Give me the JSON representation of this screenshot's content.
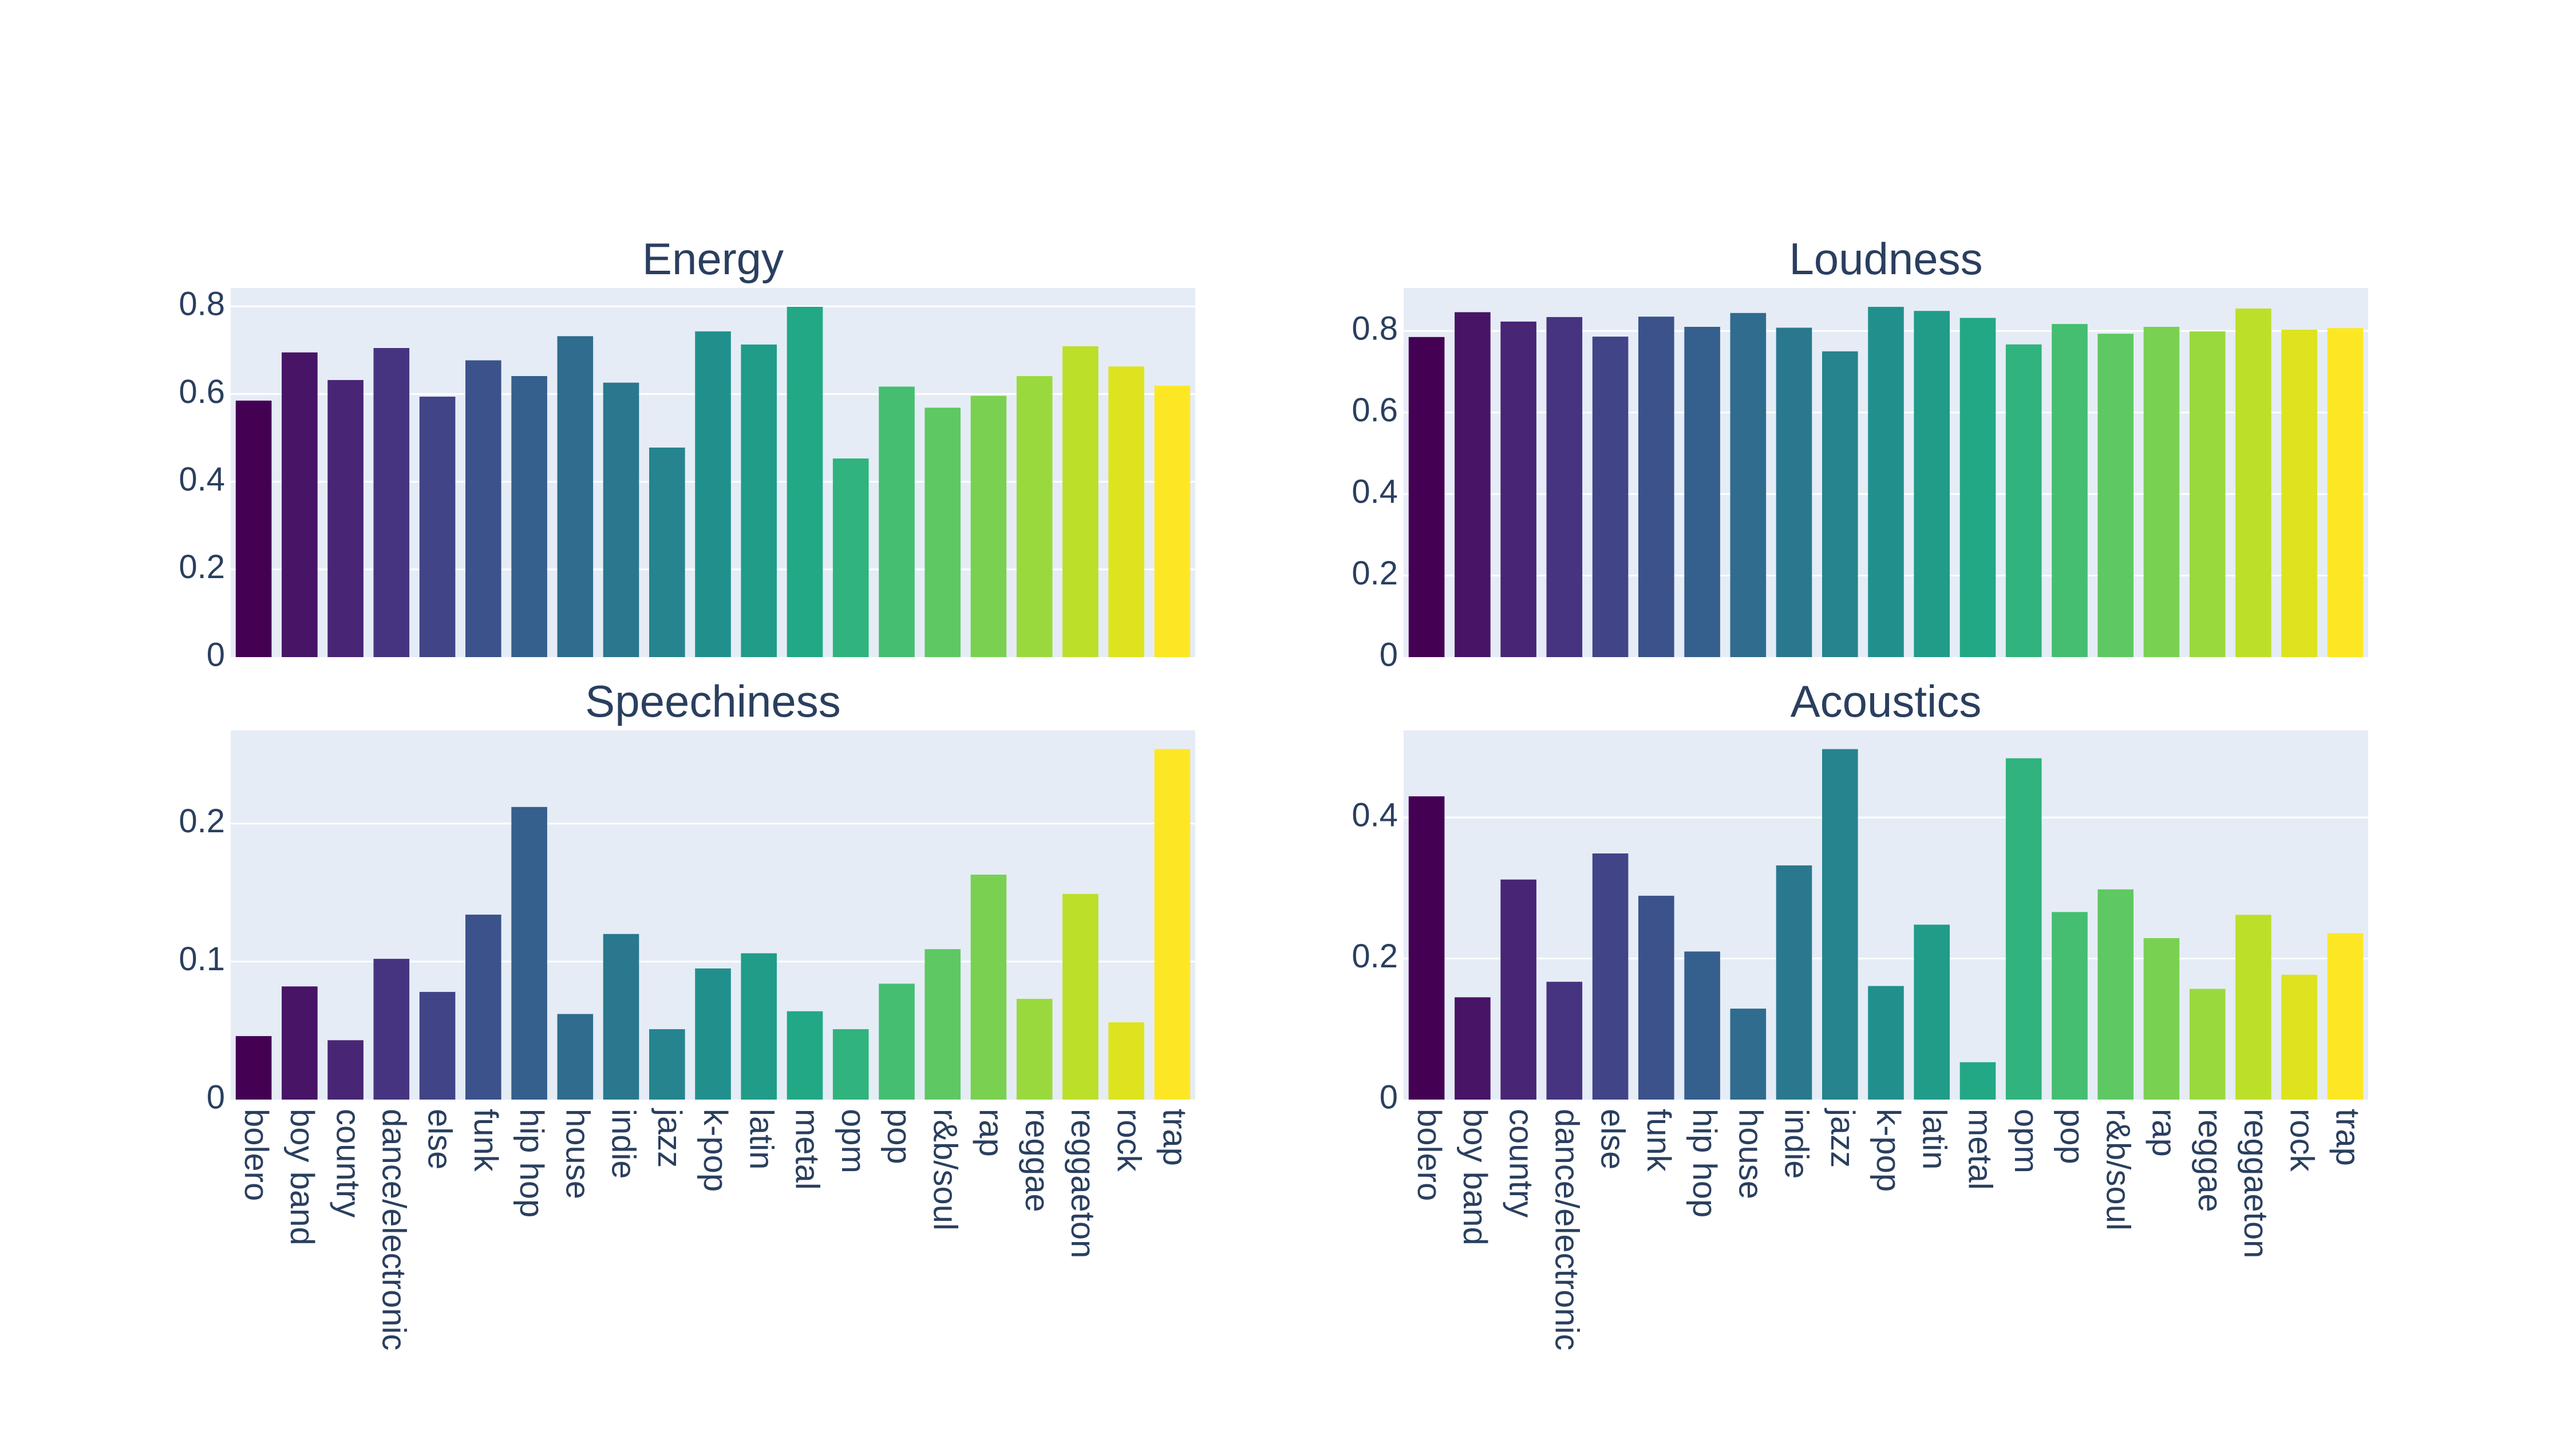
{
  "chart_data": [
    {
      "type": "bar",
      "title": "Energy",
      "categories": [
        "bolero",
        "boy band",
        "country",
        "dance/electronic",
        "else",
        "funk",
        "hip hop",
        "house",
        "indie",
        "jazz",
        "k-pop",
        "latin",
        "metal",
        "opm",
        "pop",
        "r&b/soul",
        "rap",
        "reggae",
        "reggaeton",
        "rock",
        "trap"
      ],
      "values": [
        0.585,
        0.695,
        0.632,
        0.705,
        0.594,
        0.677,
        0.641,
        0.732,
        0.626,
        0.478,
        0.743,
        0.713,
        0.799,
        0.453,
        0.617,
        0.569,
        0.596,
        0.641,
        0.709,
        0.663,
        0.619
      ],
      "ylim": [
        0,
        0.8421
      ],
      "yticks": [
        0,
        0.2,
        0.4,
        0.6,
        0.8
      ],
      "ytick_labels": [
        "0",
        "0.2",
        "0.4",
        "0.6",
        "0.8"
      ],
      "show_x_labels": false
    },
    {
      "type": "bar",
      "title": "Loudness",
      "categories": [
        "bolero",
        "boy band",
        "country",
        "dance/electronic",
        "else",
        "funk",
        "hip hop",
        "house",
        "indie",
        "jazz",
        "k-pop",
        "latin",
        "metal",
        "opm",
        "pop",
        "r&b/soul",
        "rap",
        "reggae",
        "reggaeton",
        "rock",
        "trap"
      ],
      "values": [
        0.785,
        0.846,
        0.823,
        0.834,
        0.786,
        0.835,
        0.81,
        0.844,
        0.808,
        0.75,
        0.859,
        0.849,
        0.832,
        0.767,
        0.817,
        0.793,
        0.81,
        0.799,
        0.855,
        0.803,
        0.807
      ],
      "ylim": [
        0,
        0.9055
      ],
      "yticks": [
        0,
        0.2,
        0.4,
        0.6,
        0.8
      ],
      "ytick_labels": [
        "0",
        "0.2",
        "0.4",
        "0.6",
        "0.8"
      ],
      "show_x_labels": false
    },
    {
      "type": "bar",
      "title": "Speechiness",
      "categories": [
        "bolero",
        "boy band",
        "country",
        "dance/electronic",
        "else",
        "funk",
        "hip hop",
        "house",
        "indie",
        "jazz",
        "k-pop",
        "latin",
        "metal",
        "opm",
        "pop",
        "r&b/soul",
        "rap",
        "reggae",
        "reggaeton",
        "rock",
        "trap"
      ],
      "values": [
        0.046,
        0.082,
        0.043,
        0.102,
        0.078,
        0.134,
        0.212,
        0.062,
        0.12,
        0.051,
        0.095,
        0.106,
        0.064,
        0.051,
        0.084,
        0.109,
        0.163,
        0.073,
        0.149,
        0.056,
        0.254
      ],
      "ylim": [
        0,
        0.2675
      ],
      "yticks": [
        0,
        0.1,
        0.2
      ],
      "ytick_labels": [
        "0",
        "0.1",
        "0.2"
      ],
      "show_x_labels": true
    },
    {
      "type": "bar",
      "title": "Acoustics",
      "categories": [
        "bolero",
        "boy band",
        "country",
        "dance/electronic",
        "else",
        "funk",
        "hip hop",
        "house",
        "indie",
        "jazz",
        "k-pop",
        "latin",
        "metal",
        "opm",
        "pop",
        "r&b/soul",
        "rap",
        "reggae",
        "reggaeton",
        "rock",
        "trap"
      ],
      "values": [
        0.43,
        0.145,
        0.312,
        0.167,
        0.349,
        0.289,
        0.21,
        0.129,
        0.332,
        0.497,
        0.161,
        0.248,
        0.053,
        0.484,
        0.266,
        0.298,
        0.229,
        0.157,
        0.262,
        0.177,
        0.236
      ],
      "ylim": [
        0,
        0.5235
      ],
      "yticks": [
        0,
        0.2,
        0.4
      ],
      "ytick_labels": [
        "0",
        "0.2",
        "0.4"
      ],
      "show_x_labels": true
    }
  ],
  "colors": {
    "plot_bg": "#e5ecf6",
    "grid": "#ffffff",
    "text": "#2a3f5f",
    "bars": [
      "#440154",
      "#481a6c",
      "#472f7d",
      "#414487",
      "#39568c",
      "#31688e",
      "#2a788e",
      "#23888e",
      "#1f988b",
      "#22a884",
      "#35b779",
      "#54c568",
      "#7ad151",
      "#a5db36",
      "#d2e21b",
      "#fde725"
    ]
  }
}
